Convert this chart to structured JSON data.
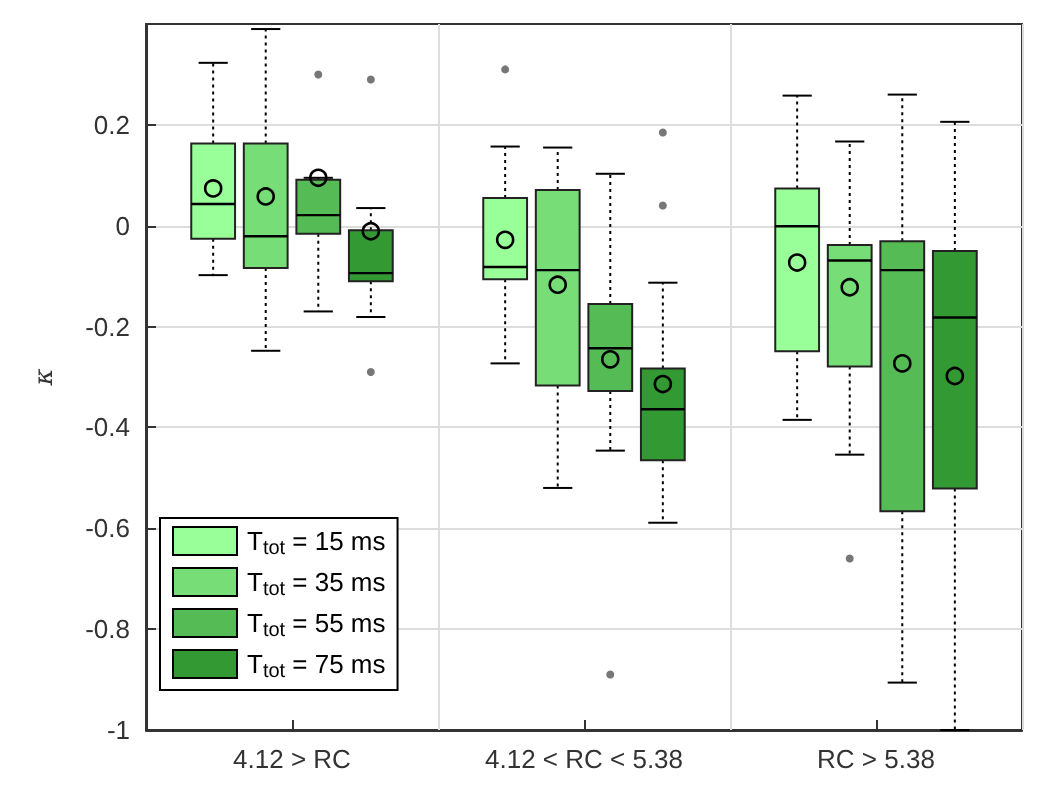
{
  "chart_data": {
    "type": "box",
    "ylabel": "κ",
    "categories": [
      "4.12 > RC",
      "4.12 < RC < 5.38",
      "RC > 5.38"
    ],
    "ylim": [
      -1,
      0.4
    ],
    "yticks": [
      -1,
      -0.8,
      -0.6,
      -0.4,
      -0.2,
      0,
      0.2
    ],
    "grid": true,
    "legend": "bottom left",
    "marker": "circle",
    "series": [
      {
        "name": "T$_{tot}$ = 15 ms",
        "color": "#99ff99",
        "boxes": [
          {
            "low": -0.098,
            "q1": -0.026,
            "median": 0.043,
            "q3": 0.163,
            "high": 0.323,
            "mean": 0.074
          },
          {
            "low": -0.273,
            "q1": -0.106,
            "median": -0.082,
            "q3": 0.055,
            "high": 0.157,
            "mean": -0.028,
            "outliers": [
              0.31
            ]
          },
          {
            "low": -0.385,
            "q1": -0.249,
            "median": -0.001,
            "q3": 0.074,
            "high": 0.258,
            "mean": -0.073
          }
        ]
      },
      {
        "name": "T$_{tot}$ = 35 ms",
        "color": "#77dd77",
        "boxes": [
          {
            "low": -0.248,
            "q1": -0.084,
            "median": -0.021,
            "q3": 0.163,
            "high": 0.39,
            "mean": 0.058
          },
          {
            "low": -0.52,
            "q1": -0.317,
            "median": -0.088,
            "q3": 0.071,
            "high": 0.155,
            "mean": -0.117
          },
          {
            "low": -0.454,
            "q1": -0.279,
            "median": -0.069,
            "q3": -0.038,
            "high": 0.167,
            "mean": -0.122,
            "outliers": [
              -0.66
            ]
          }
        ]
      },
      {
        "name": "T$_{tot}$ = 55 ms",
        "color": "#55bb55",
        "boxes": [
          {
            "low": -0.17,
            "q1": -0.016,
            "median": 0.021,
            "q3": 0.091,
            "high": 0.095,
            "mean": 0.095,
            "outliers": [
              0.3
            ]
          },
          {
            "low": -0.446,
            "q1": -0.328,
            "median": -0.243,
            "q3": -0.155,
            "high": 0.103,
            "mean": -0.265,
            "outliers": [
              -0.89
            ]
          },
          {
            "low": -0.906,
            "q1": -0.566,
            "median": -0.088,
            "q3": -0.031,
            "high": 0.26,
            "mean": -0.273
          }
        ]
      },
      {
        "name": "T$_{tot}$ = 75 ms",
        "color": "#339933",
        "boxes": [
          {
            "low": -0.181,
            "q1": -0.11,
            "median": -0.094,
            "q3": -0.009,
            "high": 0.035,
            "mean": -0.011,
            "outliers": [
              0.29,
              -0.29
            ]
          },
          {
            "low": -0.589,
            "q1": -0.465,
            "median": -0.364,
            "q3": -0.283,
            "high": -0.113,
            "mean": -0.314,
            "outliers": [
              0.185,
              0.04
            ]
          },
          {
            "low": -1,
            "q1": -0.521,
            "median": -0.182,
            "q3": -0.05,
            "high": 0.206,
            "mean": -0.298
          }
        ]
      }
    ]
  }
}
